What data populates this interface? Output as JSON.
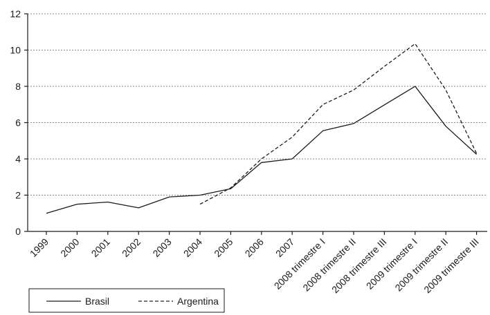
{
  "chart_data": {
    "type": "line",
    "title": "",
    "xlabel": "",
    "ylabel": "",
    "categories": [
      "1999",
      "2000",
      "2001",
      "2002",
      "2003",
      "2004",
      "2005",
      "2006",
      "2007",
      "2008 trimestre I",
      "2008 trimestre II",
      "2008 trimestre III",
      "2009 trimestre I",
      "2009 trimestre II",
      "2009 trimestre III"
    ],
    "ylim": [
      0,
      12
    ],
    "yticks": [
      "0",
      "2",
      "4",
      "6",
      "8",
      "10",
      "12"
    ],
    "grid": "horizontal-dotted",
    "legend_position": "bottom-left",
    "series": [
      {
        "name": "Brasil",
        "line_style": "solid",
        "color": "#1a1a1a",
        "values": [
          1.0,
          1.5,
          1.62,
          1.3,
          1.9,
          2.0,
          2.35,
          3.8,
          4.0,
          5.55,
          5.95,
          6.98,
          8.0,
          5.8,
          4.25
        ]
      },
      {
        "name": "Argentina",
        "line_style": "dashed",
        "color": "#1a1a1a",
        "values": [
          null,
          null,
          null,
          null,
          null,
          1.5,
          2.4,
          4.0,
          5.2,
          7.0,
          7.8,
          9.1,
          10.35,
          7.8,
          4.3
        ]
      }
    ]
  }
}
